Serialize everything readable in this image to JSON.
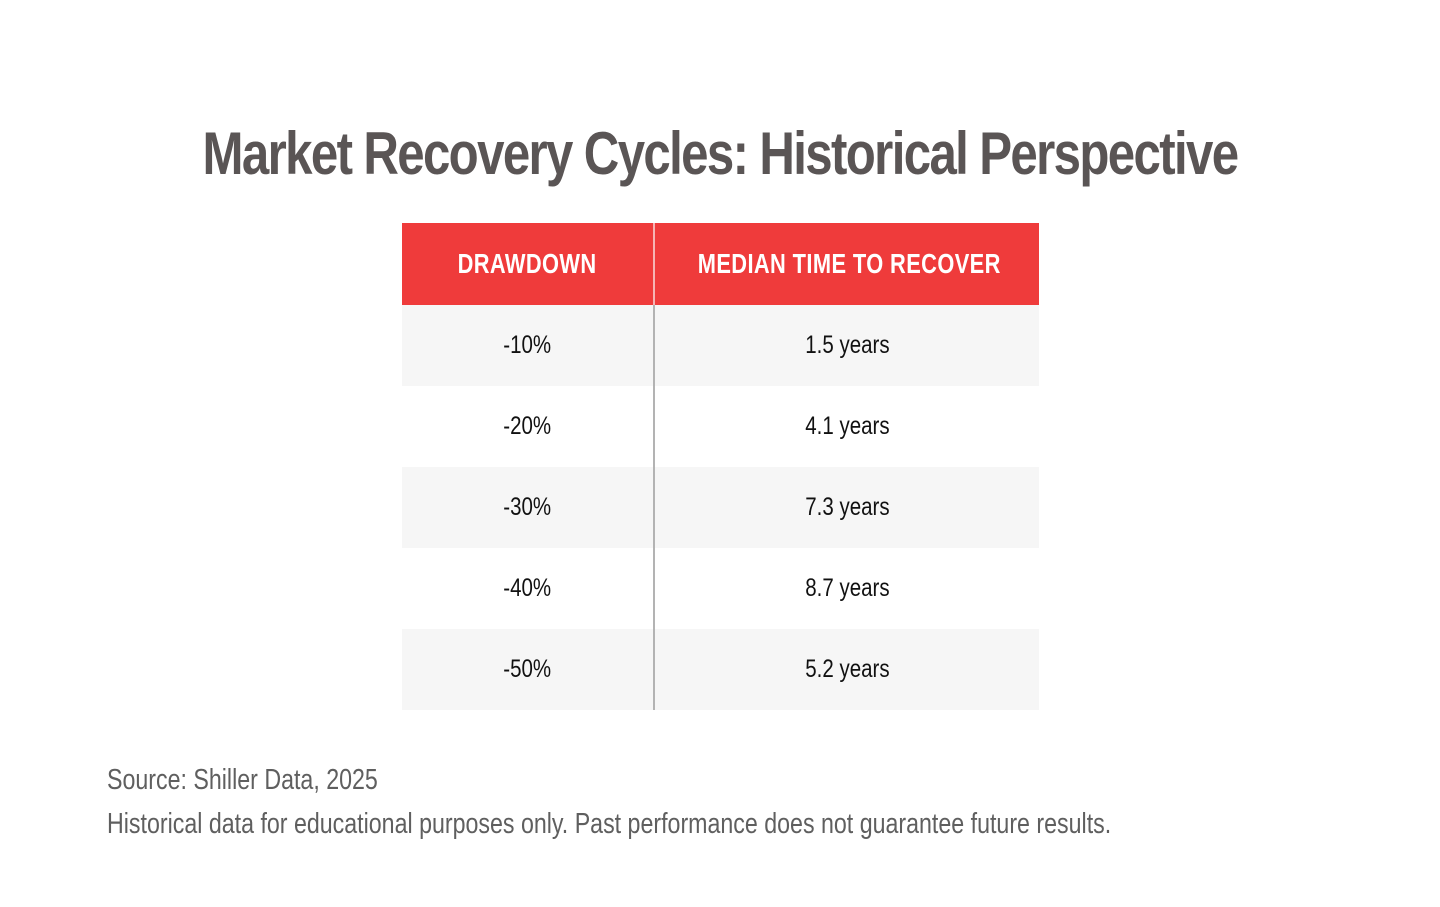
{
  "title": "Market Recovery Cycles: Historical Perspective",
  "table": {
    "headers": [
      "DRAWDOWN",
      "MEDIAN TIME TO RECOVER"
    ],
    "rows": [
      [
        "-10%",
        "1.5 years"
      ],
      [
        "-20%",
        "4.1 years"
      ],
      [
        "-30%",
        "7.3 years"
      ],
      [
        "-40%",
        "8.7 years"
      ],
      [
        "-50%",
        "5.2 years"
      ]
    ]
  },
  "footer": {
    "source": "Source: Shiller Data, 2025",
    "disclaimer": "Historical data for educational purposes only. Past performance does not guarantee future results."
  },
  "colors": {
    "header_bg": "#ef3b3b",
    "title": "#5a5555",
    "stripe": "#f6f6f6"
  },
  "chart_data": {
    "type": "table",
    "title": "Market Recovery Cycles: Historical Perspective",
    "columns": [
      "DRAWDOWN",
      "MEDIAN TIME TO RECOVER"
    ],
    "rows": [
      [
        "-10%",
        "1.5 years"
      ],
      [
        "-20%",
        "4.1 years"
      ],
      [
        "-30%",
        "7.3 years"
      ],
      [
        "-40%",
        "8.7 years"
      ],
      [
        "-50%",
        "5.2 years"
      ]
    ],
    "drawdown_pct": [
      -10,
      -20,
      -30,
      -40,
      -50
    ],
    "median_recovery_years": [
      1.5,
      4.1,
      7.3,
      8.7,
      5.2
    ]
  }
}
